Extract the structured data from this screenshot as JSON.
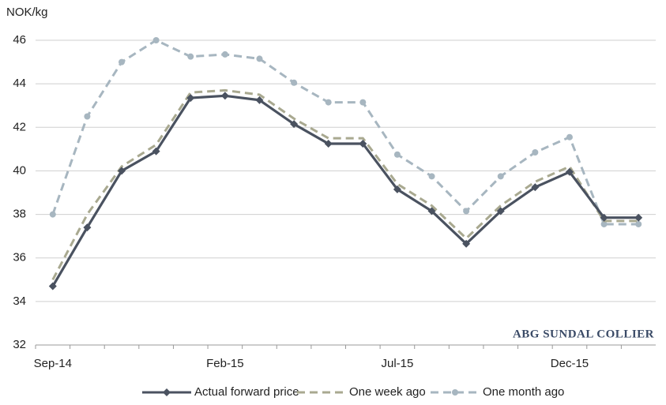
{
  "chart_data": {
    "type": "line",
    "y_label": "NOK/kg",
    "watermark": "ABG SUNDAL COLLIER",
    "categories": [
      "Sep-14",
      null,
      null,
      null,
      null,
      "Feb-15",
      null,
      null,
      null,
      null,
      "Jul-15",
      null,
      null,
      null,
      null,
      "Dec-15",
      null,
      null
    ],
    "series": [
      {
        "name": "Actual forward price",
        "color": "#4a5260",
        "dash": false,
        "marker": "diamond",
        "values": [
          34.7,
          37.4,
          40.0,
          40.9,
          43.35,
          43.45,
          43.25,
          42.15,
          41.25,
          41.25,
          39.15,
          38.15,
          36.65,
          38.15,
          39.25,
          39.95,
          37.85,
          37.85
        ]
      },
      {
        "name": "One week ago",
        "color": "#a9a990",
        "dash": true,
        "marker": "none",
        "values": [
          35.0,
          38.0,
          40.2,
          41.2,
          43.6,
          43.7,
          43.5,
          42.4,
          41.5,
          41.5,
          39.4,
          38.4,
          36.9,
          38.4,
          39.5,
          40.2,
          37.7,
          37.7
        ]
      },
      {
        "name": "One month ago",
        "color": "#a7b6c0",
        "dash": true,
        "marker": "circle",
        "values": [
          38.0,
          42.5,
          45.0,
          46.0,
          45.25,
          45.35,
          45.15,
          44.05,
          43.15,
          43.15,
          40.75,
          39.75,
          38.15,
          39.75,
          40.85,
          41.55,
          37.55,
          37.55
        ]
      }
    ],
    "ylim": [
      32,
      46
    ],
    "yticks": [
      32,
      34,
      36,
      38,
      40,
      42,
      44,
      46
    ],
    "grid": true,
    "legend": "bottom"
  }
}
